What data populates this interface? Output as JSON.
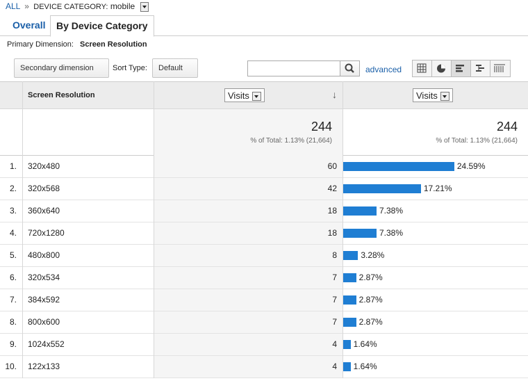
{
  "breadcrumb": {
    "all": "ALL",
    "separator": "»",
    "filter_label": "DEVICE CATEGORY:",
    "filter_value": "mobile"
  },
  "tabs": [
    "Overall",
    "By Device Category"
  ],
  "primary_dimension": {
    "label": "Primary Dimension:",
    "value": "Screen Resolution"
  },
  "controls": {
    "secondary_dimension": "Secondary dimension",
    "sort_type_label": "Sort Type:",
    "sort_type": "Default",
    "advanced": "advanced"
  },
  "table": {
    "columns": {
      "dimension": "Screen Resolution",
      "metric": "Visits",
      "comparison_metric": "Visits"
    },
    "totals": {
      "visits": 244,
      "percent_of_total": "% of Total: 1.13% (21,664)",
      "comparison_visits": 244,
      "comparison_percent_of_total": "% of Total: 1.13% (21,664)"
    },
    "rows": [
      {
        "rank": "1.",
        "resolution": "320x480",
        "visits": 60,
        "share": 24.59,
        "share_label": "24.59%"
      },
      {
        "rank": "2.",
        "resolution": "320x568",
        "visits": 42,
        "share": 17.21,
        "share_label": "17.21%"
      },
      {
        "rank": "3.",
        "resolution": "360x640",
        "visits": 18,
        "share": 7.38,
        "share_label": "7.38%"
      },
      {
        "rank": "4.",
        "resolution": "720x1280",
        "visits": 18,
        "share": 7.38,
        "share_label": "7.38%"
      },
      {
        "rank": "5.",
        "resolution": "480x800",
        "visits": 8,
        "share": 3.28,
        "share_label": "3.28%"
      },
      {
        "rank": "6.",
        "resolution": "320x534",
        "visits": 7,
        "share": 2.87,
        "share_label": "2.87%"
      },
      {
        "rank": "7.",
        "resolution": "384x592",
        "visits": 7,
        "share": 2.87,
        "share_label": "2.87%"
      },
      {
        "rank": "8.",
        "resolution": "800x600",
        "visits": 7,
        "share": 2.87,
        "share_label": "2.87%"
      },
      {
        "rank": "9.",
        "resolution": "1024x552",
        "visits": 4,
        "share": 1.64,
        "share_label": "1.64%"
      },
      {
        "rank": "10.",
        "resolution": "122x133",
        "visits": 4,
        "share": 1.64,
        "share_label": "1.64%"
      }
    ]
  }
}
